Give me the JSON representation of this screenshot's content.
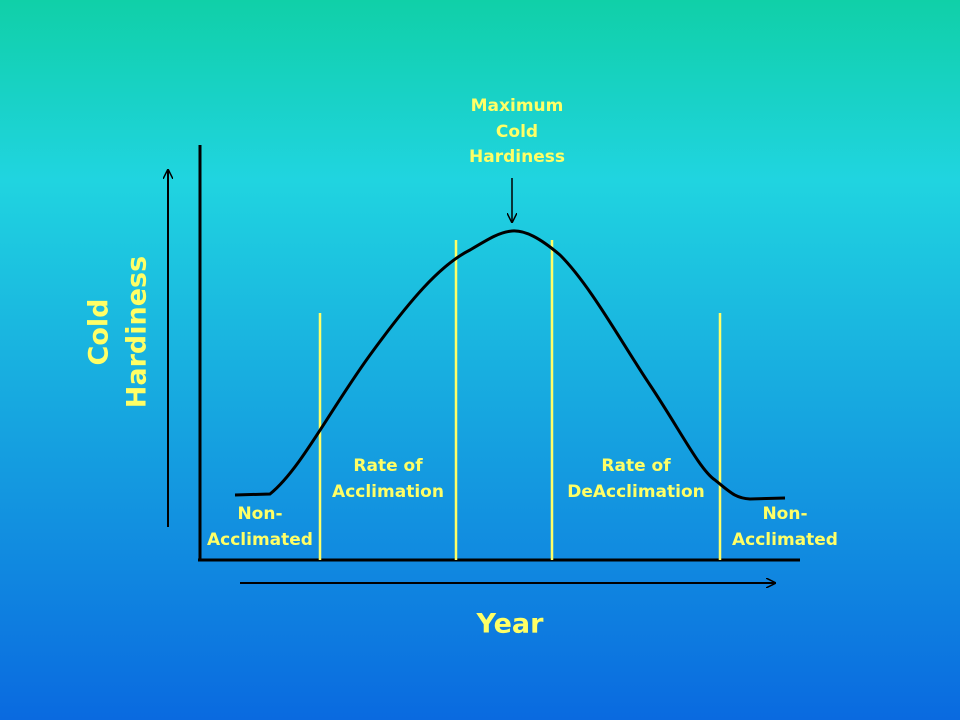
{
  "annotations": {
    "peak": [
      "Maximum",
      "Cold",
      "Hardiness"
    ],
    "acclimation": [
      "Rate of",
      "Acclimation"
    ],
    "deacclimation": [
      "Rate of",
      "DeAcclimation"
    ],
    "left_phase": [
      "Non-",
      "Acclimated"
    ],
    "right_phase": [
      "Non-",
      "Acclimated"
    ]
  },
  "axes": {
    "y_label": [
      "Cold",
      "Hardiness"
    ],
    "x_label": "Year"
  }
}
